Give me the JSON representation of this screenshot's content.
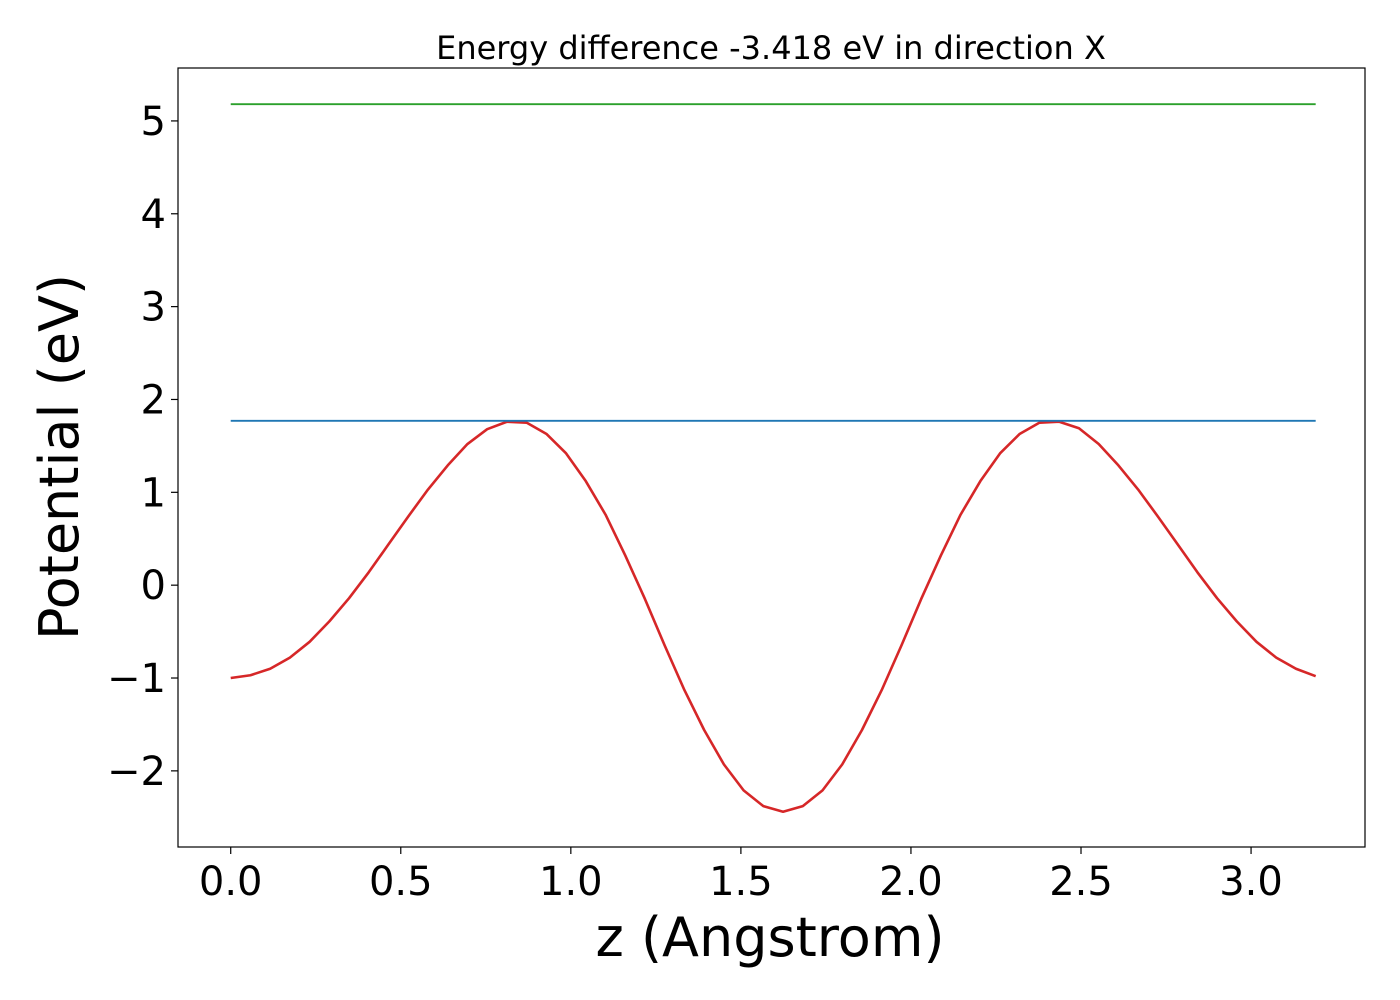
{
  "chart_data": {
    "type": "line",
    "title": "Energy difference -3.418 eV in direction X",
    "xlabel": "z (Angstrom)",
    "ylabel": "Potential (eV)",
    "xlim": [
      -0.155,
      3.335
    ],
    "ylim": [
      -2.82,
      5.57
    ],
    "x_ticks": [
      0.0,
      0.5,
      1.0,
      1.5,
      2.0,
      2.5,
      3.0
    ],
    "x_tick_labels": [
      "0.0",
      "0.5",
      "1.0",
      "1.5",
      "2.0",
      "2.5",
      "3.0"
    ],
    "y_ticks": [
      -2,
      -1,
      0,
      1,
      2,
      3,
      4,
      5
    ],
    "y_tick_labels": [
      "−2",
      "−1",
      "0",
      "1",
      "2",
      "3",
      "4",
      "5"
    ],
    "grid": false,
    "series": [
      {
        "color": "#d62728",
        "x": [
          0.0,
          0.058,
          0.116,
          0.174,
          0.232,
          0.29,
          0.348,
          0.406,
          0.464,
          0.522,
          0.58,
          0.638,
          0.696,
          0.754,
          0.812,
          0.87,
          0.928,
          0.986,
          1.044,
          1.102,
          1.16,
          1.218,
          1.276,
          1.334,
          1.392,
          1.45,
          1.508,
          1.566,
          1.624,
          1.682,
          1.74,
          1.798,
          1.856,
          1.914,
          1.972,
          2.03,
          2.088,
          2.146,
          2.204,
          2.262,
          2.32,
          2.378,
          2.436,
          2.494,
          2.552,
          2.61,
          2.668,
          2.726,
          2.784,
          2.842,
          2.9,
          2.958,
          3.016,
          3.074,
          3.132,
          3.19
        ],
        "y": [
          -1.0,
          -0.97,
          -0.9,
          -0.78,
          -0.61,
          -0.39,
          -0.14,
          0.14,
          0.44,
          0.74,
          1.03,
          1.29,
          1.52,
          1.68,
          1.76,
          1.75,
          1.63,
          1.42,
          1.12,
          0.76,
          0.32,
          -0.15,
          -0.65,
          -1.13,
          -1.56,
          -1.93,
          -2.21,
          -2.38,
          -2.44,
          -2.38,
          -2.21,
          -1.93,
          -1.56,
          -1.13,
          -0.65,
          -0.15,
          0.32,
          0.76,
          1.12,
          1.42,
          1.63,
          1.75,
          1.76,
          1.69,
          1.52,
          1.29,
          1.03,
          0.74,
          0.44,
          0.14,
          -0.14,
          -0.39,
          -0.61,
          -0.78,
          -0.9,
          -0.98
        ]
      },
      {
        "color": "#1f77b4",
        "x": [
          0.0,
          3.19
        ],
        "y": [
          1.77,
          1.77
        ]
      },
      {
        "color": "#2ca02c",
        "x": [
          0.0,
          3.19
        ],
        "y": [
          5.18,
          5.18
        ]
      }
    ]
  }
}
